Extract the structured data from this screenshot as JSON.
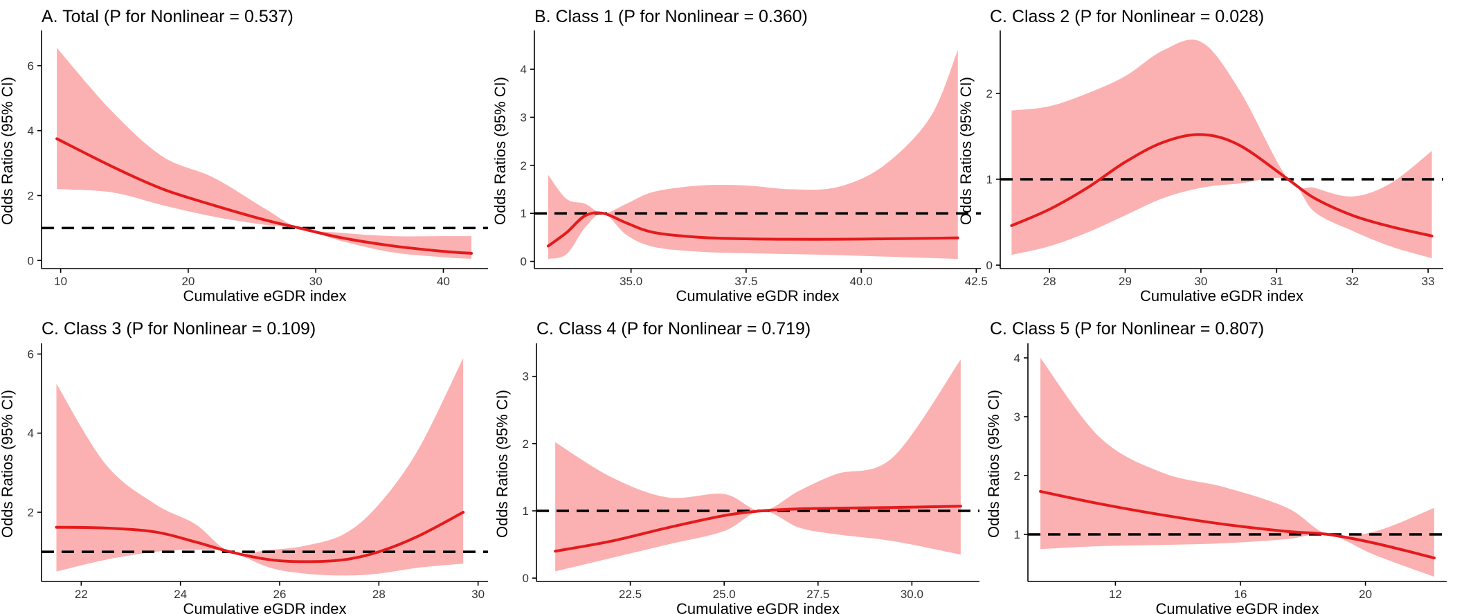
{
  "colors": {
    "ribbon": "#fbb1b1",
    "curve": "#e41a1c",
    "reference": "#000000",
    "axis": "#000000",
    "text": "#000000"
  },
  "chart_data": [
    {
      "type": "line",
      "title": "A. Total (P for Nonlinear = 0.537)",
      "xlabel": "Cumulative eGDR index",
      "ylabel": "Odds Ratios (95% CI)",
      "xlim": [
        8.5,
        43.5
      ],
      "ylim": [
        -0.25,
        7.0
      ],
      "xticks": [
        10,
        20,
        30,
        40
      ],
      "xtick_labels": [
        "10",
        "20",
        "30",
        "40"
      ],
      "yticks": [
        0,
        2,
        4,
        6
      ],
      "ytick_labels": [
        "0",
        "2",
        "4",
        "6"
      ],
      "reference_y": 1,
      "x": [
        9.7,
        14,
        18,
        22,
        26,
        28.7,
        32,
        36,
        40,
        42.2
      ],
      "or": [
        3.75,
        2.9,
        2.2,
        1.7,
        1.25,
        1.0,
        0.7,
        0.45,
        0.28,
        0.22
      ],
      "lower": [
        2.2,
        2.1,
        1.7,
        1.35,
        1.1,
        1.0,
        0.6,
        0.25,
        0.1,
        0.05
      ],
      "upper": [
        6.55,
        4.6,
        3.2,
        2.55,
        1.6,
        1.0,
        0.85,
        0.75,
        0.75,
        0.75
      ]
    },
    {
      "type": "line",
      "title": "B. Class 1 (P for Nonlinear = 0.360)",
      "xlabel": "Cumulative eGDR index",
      "ylabel": "Odds Ratios (95% CI)",
      "xlim": [
        32.9,
        42.6
      ],
      "ylim": [
        -0.15,
        4.75
      ],
      "xticks": [
        35,
        37.5,
        40,
        42.5
      ],
      "xtick_labels": [
        "35.0",
        "37.5",
        "40.0",
        "42.5"
      ],
      "yticks": [
        0,
        1,
        2,
        3,
        4
      ],
      "ytick_labels": [
        "0",
        "1",
        "2",
        "3",
        "4"
      ],
      "reference_y": 1,
      "x": [
        33.2,
        33.6,
        34.0,
        34.4,
        34.9,
        35.5,
        36.5,
        37.5,
        38.5,
        39.5,
        40.5,
        41.5,
        42.1
      ],
      "or": [
        0.32,
        0.6,
        0.95,
        1.0,
        0.8,
        0.6,
        0.5,
        0.47,
        0.46,
        0.46,
        0.47,
        0.48,
        0.49
      ],
      "lower": [
        0.05,
        0.15,
        0.7,
        1.0,
        0.55,
        0.3,
        0.2,
        0.17,
        0.15,
        0.13,
        0.1,
        0.07,
        0.05
      ],
      "upper": [
        1.8,
        1.3,
        1.2,
        1.0,
        1.2,
        1.45,
        1.58,
        1.58,
        1.5,
        1.55,
        2.0,
        3.0,
        4.4
      ]
    },
    {
      "type": "line",
      "title": "C. Class 2 (P for Nonlinear = 0.028)",
      "xlabel": "Cumulative eGDR index",
      "ylabel": "Odds Ratios (95% CI)",
      "xlim": [
        27.35,
        33.2
      ],
      "ylim": [
        -0.04,
        2.7
      ],
      "xticks": [
        28,
        29,
        30,
        31,
        32,
        33
      ],
      "xtick_labels": [
        "28",
        "29",
        "30",
        "31",
        "32",
        "33"
      ],
      "yticks": [
        0,
        1,
        2
      ],
      "ytick_labels": [
        "0",
        "1",
        "2"
      ],
      "reference_y": 1,
      "x": [
        27.5,
        28.0,
        28.5,
        29.0,
        29.5,
        30.0,
        30.5,
        31.15,
        31.5,
        32.0,
        32.5,
        33.05
      ],
      "or": [
        0.46,
        0.65,
        0.9,
        1.2,
        1.43,
        1.52,
        1.4,
        1.0,
        0.78,
        0.58,
        0.45,
        0.34
      ],
      "lower": [
        0.12,
        0.22,
        0.38,
        0.58,
        0.78,
        0.9,
        0.95,
        1.0,
        0.62,
        0.4,
        0.22,
        0.08
      ],
      "upper": [
        1.8,
        1.85,
        2.0,
        2.2,
        2.5,
        2.6,
        2.05,
        1.0,
        0.9,
        0.8,
        0.95,
        1.33
      ]
    },
    {
      "type": "line",
      "title": "C. Class 3 (P for Nonlinear = 0.109)",
      "xlabel": "Cumulative eGDR index",
      "ylabel": "Odds Ratios (95% CI)",
      "xlim": [
        21.2,
        30.2
      ],
      "ylim": [
        0.25,
        6.2
      ],
      "xticks": [
        22,
        24,
        26,
        28,
        30
      ],
      "xtick_labels": [
        "22",
        "24",
        "26",
        "28",
        "30"
      ],
      "yticks": [
        2,
        4,
        6
      ],
      "ytick_labels": [
        "2",
        "4",
        "6"
      ],
      "reference_y": 1,
      "x": [
        21.5,
        22.5,
        23.5,
        24.3,
        25.0,
        25.8,
        26.5,
        27.3,
        28.0,
        28.8,
        29.7
      ],
      "or": [
        1.62,
        1.6,
        1.5,
        1.25,
        1.0,
        0.8,
        0.75,
        0.8,
        1.0,
        1.4,
        2.0
      ],
      "lower": [
        0.5,
        0.8,
        1.0,
        1.05,
        1.0,
        0.6,
        0.45,
        0.4,
        0.45,
        0.6,
        0.7
      ],
      "upper": [
        5.25,
        3.2,
        2.2,
        1.7,
        1.0,
        1.05,
        1.15,
        1.45,
        2.2,
        3.6,
        5.9
      ]
    },
    {
      "type": "line",
      "title": "C. Class 4 (P for Nonlinear = 0.719)",
      "xlabel": "Cumulative eGDR index",
      "ylabel": "Odds Ratios (95% CI)",
      "xlim": [
        20.0,
        31.8
      ],
      "ylim": [
        -0.05,
        3.45
      ],
      "xticks": [
        22.5,
        25,
        27.5,
        30
      ],
      "xtick_labels": [
        "22.5",
        "25.0",
        "27.5",
        "30.0"
      ],
      "yticks": [
        0,
        1,
        2,
        3
      ],
      "ytick_labels": [
        "0",
        "1",
        "2",
        "3"
      ],
      "reference_y": 1,
      "x": [
        20.5,
        22.0,
        23.5,
        25.0,
        26.0,
        27.0,
        28.0,
        29.5,
        31.3
      ],
      "or": [
        0.4,
        0.55,
        0.75,
        0.93,
        1.0,
        1.03,
        1.04,
        1.05,
        1.07
      ],
      "lower": [
        0.1,
        0.3,
        0.5,
        0.7,
        1.0,
        0.75,
        0.65,
        0.55,
        0.35
      ],
      "upper": [
        2.02,
        1.5,
        1.2,
        1.25,
        1.0,
        1.3,
        1.55,
        1.8,
        3.25
      ]
    },
    {
      "type": "line",
      "title": "C. Class 5 (P for Nonlinear = 0.807)",
      "xlabel": "Cumulative eGDR index",
      "ylabel": "Odds Ratios (95% CI)",
      "xlim": [
        9.2,
        22.6
      ],
      "ylim": [
        0.2,
        4.2
      ],
      "xticks": [
        12,
        16,
        20
      ],
      "xtick_labels": [
        "12",
        "16",
        "20"
      ],
      "yticks": [
        1,
        2,
        3,
        4
      ],
      "ytick_labels": [
        "1",
        "2",
        "3",
        "4"
      ],
      "reference_y": 1,
      "x": [
        9.6,
        11.5,
        13.5,
        15.5,
        17.5,
        18.8,
        20.3,
        22.2
      ],
      "or": [
        1.73,
        1.52,
        1.33,
        1.17,
        1.05,
        1.0,
        0.85,
        0.6
      ],
      "lower": [
        0.75,
        0.8,
        0.82,
        0.85,
        0.92,
        1.0,
        0.65,
        0.28
      ],
      "upper": [
        4.0,
        2.65,
        2.05,
        1.8,
        1.45,
        1.0,
        1.05,
        1.45
      ]
    }
  ]
}
